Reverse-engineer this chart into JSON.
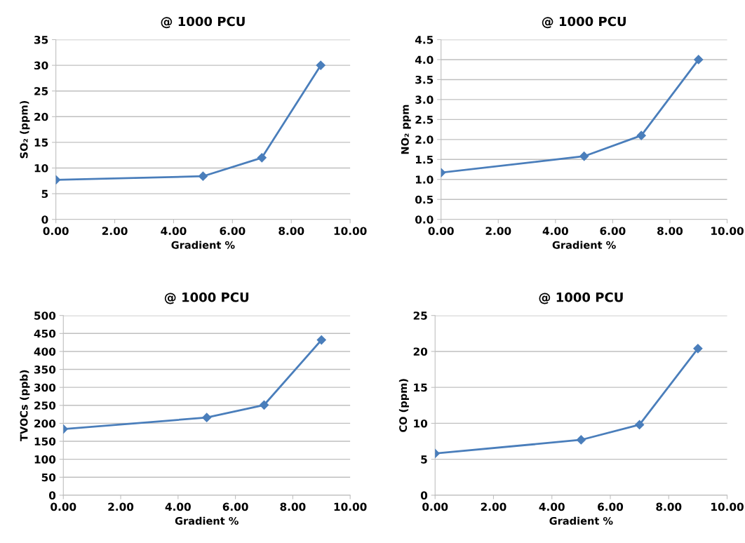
{
  "chart_data": [
    {
      "type": "line",
      "title": "@ 1000 PCU",
      "xlabel": "Gradient %",
      "ylabel": "SO₂ (ppm)",
      "x": [
        0,
        5,
        7,
        9
      ],
      "series": [
        {
          "color": "#4a7ebb",
          "values": [
            7.7,
            8.4,
            12,
            30
          ]
        }
      ],
      "xlim": [
        0,
        10
      ],
      "xticks": [
        {
          "value": 0,
          "label": "0.00"
        },
        {
          "value": 2,
          "label": "2.00"
        },
        {
          "value": 4,
          "label": "4.00"
        },
        {
          "value": 6,
          "label": "6.00"
        },
        {
          "value": 8,
          "label": "8.00"
        },
        {
          "value": 10,
          "label": "10.00"
        }
      ],
      "ylim": [
        0,
        35
      ],
      "yticks": [
        0,
        5,
        10,
        15,
        20,
        25,
        30,
        35
      ],
      "grid": "y",
      "marker": "diamond",
      "line_style": "solid"
    },
    {
      "type": "line",
      "title": "@ 1000 PCU",
      "xlabel": "Gradient %",
      "ylabel": "NO₂ ppm",
      "x": [
        0,
        5,
        7,
        9
      ],
      "series": [
        {
          "color": "#4a7ebb",
          "values": [
            1.17,
            1.58,
            2.1,
            4.0
          ]
        }
      ],
      "xlim": [
        0,
        10
      ],
      "xticks": [
        {
          "value": 0,
          "label": "0.00"
        },
        {
          "value": 2,
          "label": "2.00"
        },
        {
          "value": 4,
          "label": "4.00"
        },
        {
          "value": 6,
          "label": "6.00"
        },
        {
          "value": 8,
          "label": "8.00"
        },
        {
          "value": 10,
          "label": "10.00"
        }
      ],
      "ylim": [
        0,
        4.5
      ],
      "yticks": [
        {
          "value": 0,
          "label": "0.0"
        },
        {
          "value": 0.5,
          "label": "0.5"
        },
        {
          "value": 1,
          "label": "1.0"
        },
        {
          "value": 1.5,
          "label": "1.5"
        },
        {
          "value": 2,
          "label": "2.0"
        },
        {
          "value": 2.5,
          "label": "2.5"
        },
        {
          "value": 3,
          "label": "3.0"
        },
        {
          "value": 3.5,
          "label": "3.5"
        },
        {
          "value": 4,
          "label": "4.0"
        },
        {
          "value": 4.5,
          "label": "4.5"
        }
      ],
      "grid": "y",
      "marker": "diamond",
      "line_style": "solid"
    },
    {
      "type": "line",
      "title": "@ 1000 PCU",
      "xlabel": "Gradient %",
      "ylabel": "TVOCs (ppb)",
      "x": [
        0,
        5,
        7,
        9
      ],
      "series": [
        {
          "color": "#4a7ebb",
          "values": [
            184,
            216,
            251,
            432
          ]
        }
      ],
      "xlim": [
        0,
        10
      ],
      "xticks": [
        {
          "value": 0,
          "label": "0.00"
        },
        {
          "value": 2,
          "label": "2.00"
        },
        {
          "value": 4,
          "label": "4.00"
        },
        {
          "value": 6,
          "label": "6.00"
        },
        {
          "value": 8,
          "label": "8.00"
        },
        {
          "value": 10,
          "label": "10.00"
        }
      ],
      "ylim": [
        0,
        500
      ],
      "yticks": [
        0,
        50,
        100,
        150,
        200,
        250,
        300,
        350,
        400,
        450,
        500
      ],
      "grid": "y",
      "marker": "diamond",
      "line_style": "solid"
    },
    {
      "type": "line",
      "title": "@ 1000 PCU",
      "xlabel": "Gradient %",
      "ylabel": "CO (ppm)",
      "x": [
        0,
        5,
        7,
        9
      ],
      "series": [
        {
          "color": "#4a7ebb",
          "values": [
            5.8,
            7.7,
            9.8,
            20.4
          ]
        }
      ],
      "xlim": [
        0,
        10
      ],
      "xticks": [
        {
          "value": 0,
          "label": "0.00"
        },
        {
          "value": 2,
          "label": "2.00"
        },
        {
          "value": 4,
          "label": "4.00"
        },
        {
          "value": 6,
          "label": "6.00"
        },
        {
          "value": 8,
          "label": "8.00"
        },
        {
          "value": 10,
          "label": "10.00"
        }
      ],
      "ylim": [
        0,
        25
      ],
      "yticks": [
        0,
        5,
        10,
        15,
        20,
        25
      ],
      "grid": "y",
      "marker": "diamond",
      "line_style": "solid"
    }
  ]
}
